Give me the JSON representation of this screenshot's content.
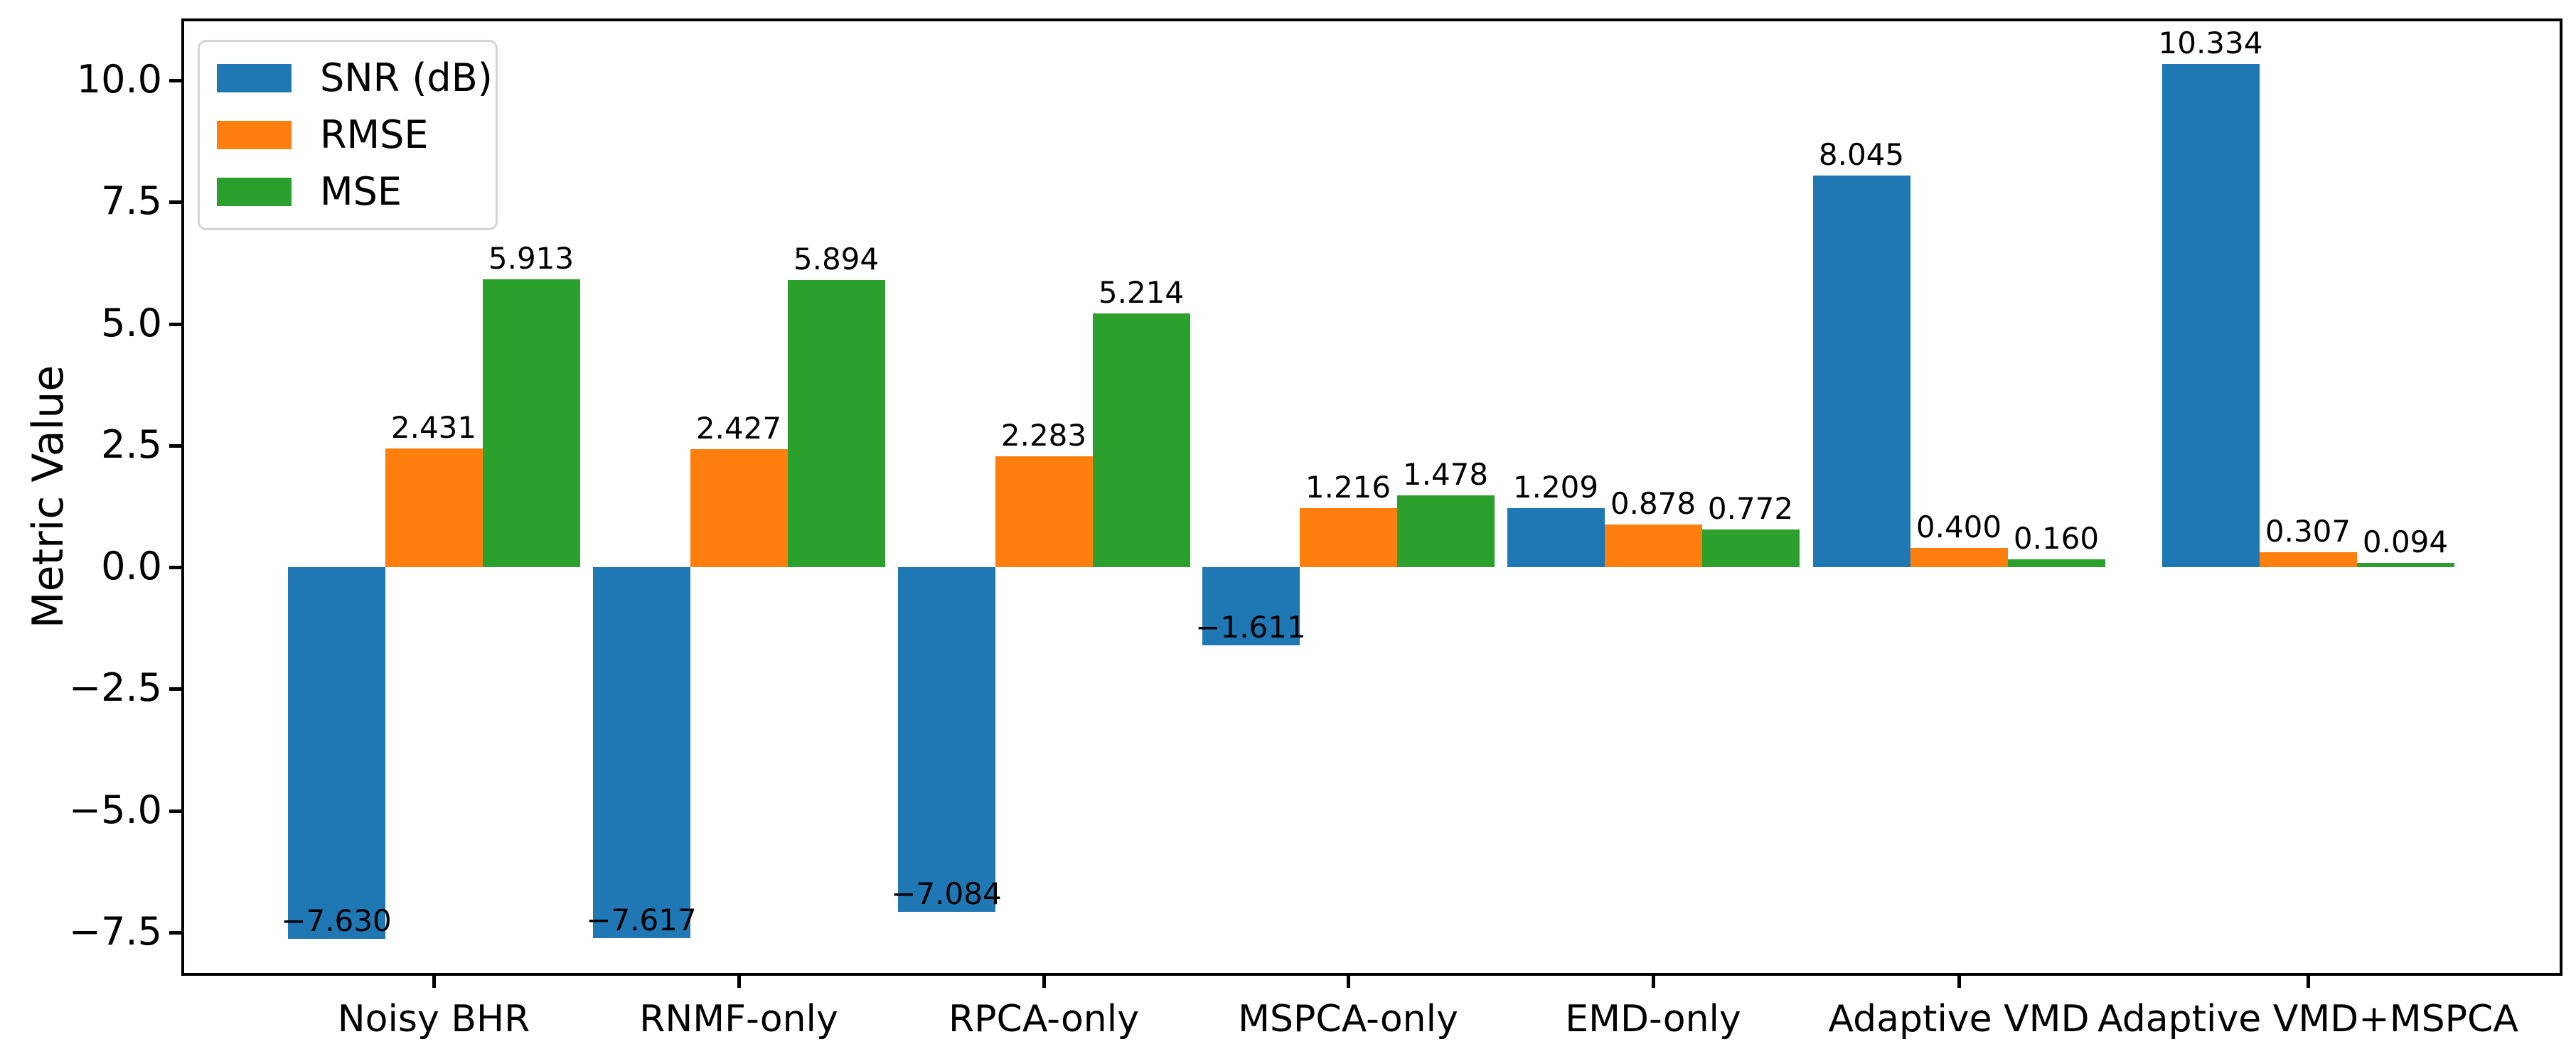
{
  "figure": {
    "background": "#ffffff"
  },
  "axes": {
    "ylabel": "Metric Value",
    "ytick_labels": [
      "10.0",
      "7.5",
      "5.0",
      "2.5",
      "0.0",
      "−2.5",
      "−5.0",
      "−7.5"
    ],
    "ytick_values": [
      10.0,
      7.5,
      5.0,
      2.5,
      0.0,
      -2.5,
      -5.0,
      -7.5
    ],
    "spine_color": "#000000",
    "text_color": "#000000"
  },
  "legend": {
    "items": [
      {
        "label": "SNR (dB)",
        "color": "#1f77b4"
      },
      {
        "label": "RMSE",
        "color": "#ff7f0e"
      },
      {
        "label": "MSE",
        "color": "#2ca02c"
      }
    ]
  },
  "chart_data": {
    "type": "bar",
    "title": "",
    "xlabel": "",
    "ylabel": "Metric Value",
    "categories": [
      "Noisy BHR",
      "RNMF-only",
      "RPCA-only",
      "MSPCA-only",
      "EMD-only",
      "Adaptive VMD",
      "Adaptive VMD+MSPCA"
    ],
    "series": [
      {
        "name": "SNR (dB)",
        "color": "#1f77b4",
        "values": [
          -7.63,
          -7.617,
          -7.084,
          -1.611,
          1.209,
          8.045,
          10.334
        ],
        "labels": [
          "−7.630",
          "−7.617",
          "−7.084",
          "−1.611",
          "1.209",
          "8.045",
          "10.334"
        ]
      },
      {
        "name": "RMSE",
        "color": "#ff7f0e",
        "values": [
          2.431,
          2.427,
          2.283,
          1.216,
          0.878,
          0.4,
          0.307
        ],
        "labels": [
          "2.431",
          "2.427",
          "2.283",
          "1.216",
          "0.878",
          "0.400",
          "0.307"
        ]
      },
      {
        "name": "MSE",
        "color": "#2ca02c",
        "values": [
          5.913,
          5.894,
          5.214,
          1.478,
          0.772,
          0.16,
          0.094
        ],
        "labels": [
          "5.913",
          "5.894",
          "5.214",
          "1.478",
          "0.772",
          "0.160",
          "0.094"
        ]
      }
    ],
    "ylim": [
      -8.35,
      11.24
    ],
    "grid": false,
    "legend_position": "upper left",
    "bar_label_decimals": 3
  }
}
